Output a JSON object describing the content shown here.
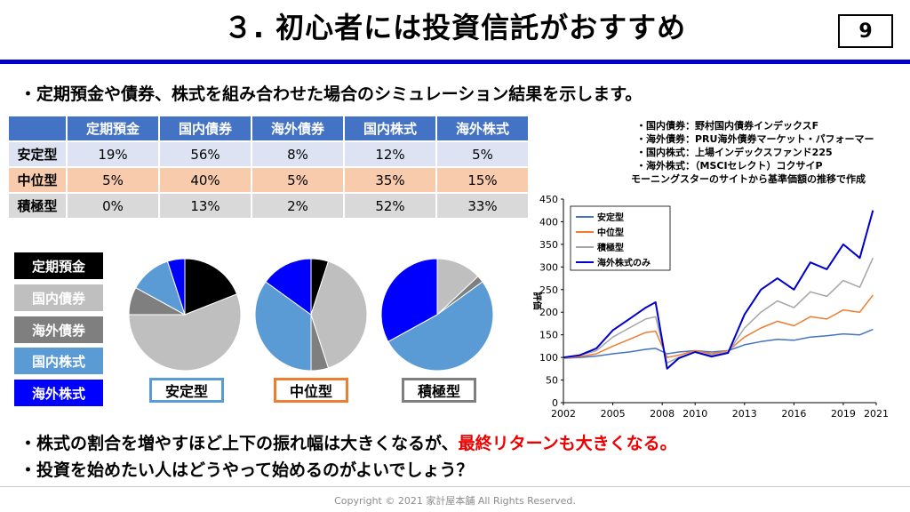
{
  "title": "３. 初心者には投資信託がおすすめ",
  "page_number": "9",
  "intro": "・定期預金や債券、株式を組み合わせた場合のシミュレーション結果を示します。",
  "allocation": {
    "headers": [
      "定期預金",
      "国内債券",
      "海外債券",
      "国内株式",
      "海外株式"
    ],
    "rows": [
      {
        "label": "安定型",
        "values": [
          "19%",
          "56%",
          "8%",
          "12%",
          "5%"
        ]
      },
      {
        "label": "中位型",
        "values": [
          "5%",
          "40%",
          "5%",
          "35%",
          "15%"
        ]
      },
      {
        "label": "積極型",
        "values": [
          "0%",
          "13%",
          "2%",
          "52%",
          "33%"
        ]
      }
    ]
  },
  "legend": [
    {
      "label": "定期預金",
      "color": "#000000"
    },
    {
      "label": "国内債券",
      "color": "#bfbfbf"
    },
    {
      "label": "海外債券",
      "color": "#7f7f7f"
    },
    {
      "label": "国内株式",
      "color": "#5b9bd5"
    },
    {
      "label": "海外株式",
      "color": "#0000ff"
    }
  ],
  "pies": [
    {
      "label": "安定型",
      "border": "#5b9bd5",
      "shares": [
        19,
        56,
        8,
        12,
        5
      ]
    },
    {
      "label": "中位型",
      "border": "#ed7d31",
      "shares": [
        5,
        40,
        5,
        35,
        15
      ]
    },
    {
      "label": "積極型",
      "border": "#7f7f7f",
      "shares": [
        0,
        13,
        2,
        52,
        33
      ]
    }
  ],
  "notes": [
    "・国内債券：野村国内債券インデックスF",
    "・海外債券：PRU海外債券マーケット・パフォーマー",
    "・国内株式：上場インデックスファンド225",
    "・海外株式：（MSCIセレクト）コクサイP",
    "モーニングスターのサイトから基準価額の推移で作成"
  ],
  "chart_data": {
    "type": "line",
    "ylabel": "評価",
    "ylim": [
      0,
      450
    ],
    "yticks": [
      0,
      50,
      100,
      150,
      200,
      250,
      300,
      350,
      400,
      450
    ],
    "xlim": [
      2002,
      2021
    ],
    "xticks": [
      2002,
      2005,
      2008,
      2010,
      2013,
      2016,
      2019,
      2021
    ],
    "legend_position": "top-left",
    "x": [
      2002,
      2003,
      2004,
      2005,
      2006,
      2007,
      2007.6,
      2008.3,
      2009,
      2010,
      2011,
      2012,
      2013,
      2014,
      2015,
      2016,
      2017,
      2018,
      2019,
      2020,
      2020.8
    ],
    "series": [
      {
        "name": "安定型",
        "color": "#4472c4",
        "values": [
          98,
          100,
          103,
          108,
          112,
          118,
          120,
          108,
          112,
          115,
          112,
          115,
          128,
          135,
          140,
          138,
          145,
          148,
          152,
          150,
          162
        ]
      },
      {
        "name": "中位型",
        "color": "#ed7d31",
        "values": [
          98,
          102,
          108,
          125,
          140,
          155,
          158,
          100,
          105,
          115,
          108,
          115,
          145,
          165,
          180,
          170,
          190,
          185,
          205,
          200,
          238
        ]
      },
      {
        "name": "積極型",
        "color": "#a5a5a5",
        "values": [
          98,
          105,
          115,
          145,
          165,
          185,
          190,
          88,
          100,
          112,
          105,
          112,
          165,
          200,
          225,
          210,
          245,
          235,
          270,
          255,
          320
        ]
      },
      {
        "name": "海外株式のみ",
        "color": "#0000cc",
        "values": [
          100,
          105,
          120,
          160,
          185,
          210,
          222,
          75,
          98,
          112,
          102,
          110,
          195,
          250,
          275,
          250,
          310,
          295,
          350,
          320,
          425
        ]
      }
    ]
  },
  "conclusion_prefix": "・株式の割合を増やすほど上下の振れ幅は大きくなるが、",
  "conclusion_highlight": "最終リターンも大きくなる。",
  "question": "・投資を始めたい人はどうやって始めるのがよいでしょう？",
  "footer": "Copyright © 2021 家計屋本舗 All Rights Reserved."
}
